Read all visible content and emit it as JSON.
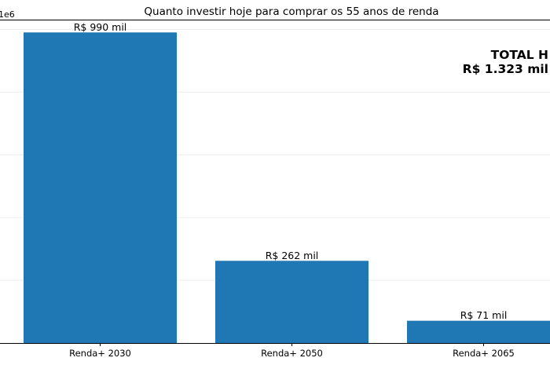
{
  "chart_data": {
    "type": "bar",
    "title": "Quanto investir hoje para comprar os 55 anos de renda",
    "categories": [
      "Renda+ 2030",
      "Renda+ 2050",
      "Renda+ 2065"
    ],
    "values": [
      990000,
      262000,
      71000
    ],
    "value_labels": [
      "R$ 990 mil",
      "R$ 262 mil",
      "R$ 71 mil"
    ],
    "xlabel": "",
    "ylabel": "",
    "y_axis_multiplier": "1e6",
    "ylim": [
      0,
      1.0
    ],
    "ylim_units": 1000000,
    "grid": "horizontal",
    "bar_color": "#1f77b4",
    "annotation": {
      "line1": "TOTAL H",
      "line2": "R$ 1.323 mil"
    }
  }
}
